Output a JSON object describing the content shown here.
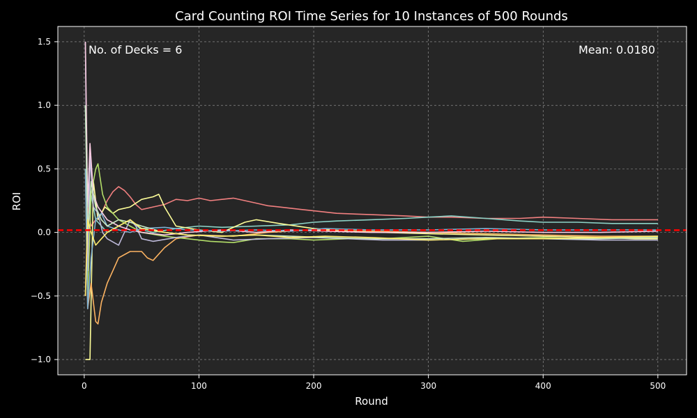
{
  "chart_data": {
    "type": "line",
    "title": "Card Counting ROI Time Series for 10 Instances of 500 Rounds",
    "xlabel": "Round",
    "ylabel": "ROI",
    "xlim": [
      -23,
      525
    ],
    "ylim": [
      -1.12,
      1.62
    ],
    "xticks": [
      0,
      100,
      200,
      300,
      400,
      500
    ],
    "xtick_labels": [
      "0",
      "100",
      "200",
      "300",
      "400",
      "500"
    ],
    "yticks": [
      -1.0,
      -0.5,
      0.0,
      0.5,
      1.0,
      1.5
    ],
    "ytick_labels": [
      "−1.0",
      "−0.5",
      "0.0",
      "0.5",
      "1.0",
      "1.5"
    ],
    "grid": true,
    "background": "#262626",
    "figure_background": "#000000",
    "annotations": {
      "left": "No. of Decks = 6",
      "right": "Mean: 0.0180"
    },
    "mean_line": {
      "value": 0.018,
      "color": "#ff0000",
      "style": "dashed"
    },
    "series": [
      {
        "color": "#f28080",
        "x": [
          1,
          3,
          6,
          10,
          15,
          20,
          25,
          30,
          35,
          40,
          45,
          50,
          60,
          70,
          80,
          90,
          100,
          110,
          120,
          130,
          140,
          150,
          160,
          170,
          180,
          190,
          200,
          220,
          250,
          280,
          300,
          320,
          350,
          380,
          400,
          430,
          460,
          480,
          500
        ],
        "values": [
          -0.5,
          0.2,
          0.05,
          0.1,
          0.15,
          0.25,
          0.32,
          0.36,
          0.33,
          0.28,
          0.22,
          0.18,
          0.2,
          0.22,
          0.26,
          0.25,
          0.27,
          0.25,
          0.26,
          0.27,
          0.25,
          0.23,
          0.21,
          0.2,
          0.19,
          0.18,
          0.17,
          0.15,
          0.14,
          0.13,
          0.12,
          0.12,
          0.11,
          0.11,
          0.12,
          0.11,
          0.1,
          0.1,
          0.1
        ]
      },
      {
        "color": "#8dd3c7",
        "x": [
          1,
          3,
          6,
          10,
          15,
          20,
          30,
          40,
          50,
          60,
          80,
          100,
          120,
          150,
          180,
          200,
          220,
          250,
          280,
          300,
          320,
          350,
          380,
          400,
          430,
          460,
          480,
          500
        ],
        "values": [
          1.0,
          0.0,
          0.3,
          0.1,
          0.05,
          0.0,
          0.05,
          0.1,
          0.02,
          0.0,
          0.03,
          0.05,
          0.04,
          0.05,
          0.06,
          0.08,
          0.09,
          0.1,
          0.11,
          0.12,
          0.13,
          0.11,
          0.09,
          0.08,
          0.08,
          0.07,
          0.07,
          0.07
        ]
      },
      {
        "color": "#ffff99",
        "x": [
          1,
          3,
          5,
          8,
          12,
          18,
          25,
          30,
          40,
          50,
          60,
          65,
          70,
          80,
          100,
          120,
          140,
          150,
          170,
          200,
          230,
          260,
          300,
          350,
          400,
          450,
          480,
          500
        ],
        "values": [
          -1.0,
          -1.0,
          -1.0,
          0.4,
          0.1,
          0.2,
          0.15,
          0.18,
          0.2,
          0.26,
          0.28,
          0.3,
          0.2,
          0.05,
          0.02,
          0.0,
          0.08,
          0.1,
          0.07,
          0.03,
          0.01,
          0.0,
          -0.01,
          -0.02,
          -0.03,
          -0.04,
          -0.05,
          -0.05
        ]
      },
      {
        "color": "#fdb462",
        "x": [
          1,
          3,
          6,
          10,
          12,
          15,
          20,
          25,
          30,
          40,
          50,
          55,
          60,
          70,
          80,
          100,
          130,
          160,
          200,
          250,
          300,
          350,
          400,
          450,
          500
        ],
        "values": [
          0.5,
          -0.6,
          -0.4,
          -0.7,
          -0.72,
          -0.55,
          -0.4,
          -0.3,
          -0.2,
          -0.15,
          -0.15,
          -0.2,
          -0.22,
          -0.12,
          -0.05,
          -0.02,
          -0.03,
          0.0,
          0.02,
          0.01,
          0.0,
          -0.01,
          -0.02,
          -0.03,
          -0.03
        ]
      },
      {
        "color": "#b3de69",
        "x": [
          1,
          3,
          6,
          10,
          12,
          16,
          20,
          30,
          40,
          50,
          70,
          90,
          110,
          130,
          150,
          180,
          200,
          230,
          260,
          300,
          330,
          360,
          400,
          430,
          460,
          500
        ],
        "values": [
          0.5,
          -0.5,
          0.3,
          0.5,
          0.54,
          0.3,
          0.2,
          0.1,
          0.05,
          0.0,
          -0.03,
          -0.05,
          -0.07,
          -0.08,
          -0.05,
          -0.05,
          -0.06,
          -0.05,
          -0.05,
          -0.03,
          -0.07,
          -0.05,
          -0.04,
          -0.05,
          -0.04,
          -0.04
        ]
      },
      {
        "color": "#bebada",
        "x": [
          1,
          3,
          5,
          8,
          12,
          16,
          20,
          30,
          40,
          45,
          50,
          60,
          80,
          100,
          130,
          160,
          200,
          230,
          260,
          300,
          350,
          400,
          450,
          500
        ],
        "values": [
          1.5,
          -0.3,
          0.6,
          0.2,
          0.15,
          0.0,
          -0.05,
          -0.1,
          0.1,
          0.05,
          -0.05,
          -0.07,
          -0.04,
          -0.02,
          -0.06,
          -0.05,
          -0.04,
          -0.05,
          -0.06,
          -0.06,
          -0.05,
          -0.05,
          -0.06,
          -0.06
        ]
      },
      {
        "color": "#fccde5",
        "x": [
          1,
          3,
          5,
          8,
          12,
          20,
          30,
          40,
          50,
          70,
          90,
          120,
          150,
          180,
          210,
          250,
          300,
          350,
          400,
          450,
          500
        ],
        "values": [
          1.5,
          0.2,
          0.7,
          0.3,
          0.2,
          0.1,
          0.05,
          0.02,
          0.0,
          -0.02,
          0.0,
          0.02,
          0.0,
          0.02,
          0.01,
          0.0,
          0.0,
          0.01,
          0.0,
          0.0,
          0.01
        ]
      },
      {
        "color": "#80b1d3",
        "x": [
          1,
          3,
          6,
          10,
          15,
          20,
          30,
          40,
          50,
          70,
          90,
          120,
          150,
          180,
          210,
          250,
          300,
          350,
          400,
          450,
          500
        ],
        "values": [
          0.5,
          -0.6,
          -0.2,
          0.1,
          0.15,
          0.05,
          0.02,
          0.0,
          0.03,
          0.04,
          0.02,
          0.01,
          0.02,
          0.01,
          0.03,
          0.02,
          0.02,
          0.03,
          0.02,
          0.02,
          0.02
        ]
      },
      {
        "color": "#ccebc5",
        "x": [
          1,
          3,
          6,
          10,
          15,
          20,
          30,
          40,
          50,
          70,
          90,
          120,
          150,
          180,
          210,
          250,
          300,
          350,
          400,
          450,
          500
        ],
        "values": [
          1.0,
          0.0,
          0.4,
          0.2,
          0.1,
          0.05,
          0.1,
          0.08,
          0.05,
          0.0,
          -0.02,
          -0.03,
          -0.02,
          -0.03,
          -0.04,
          -0.05,
          -0.05,
          -0.04,
          -0.05,
          -0.05,
          -0.04
        ]
      },
      {
        "color": "#ffed6f",
        "x": [
          1,
          3,
          6,
          10,
          15,
          20,
          30,
          40,
          50,
          70,
          90,
          120,
          150,
          180,
          210,
          250,
          300,
          350,
          400,
          450,
          500
        ],
        "values": [
          -0.5,
          0.1,
          0.0,
          -0.1,
          -0.05,
          0.0,
          0.05,
          0.1,
          0.03,
          0.0,
          -0.02,
          -0.03,
          -0.02,
          -0.04,
          -0.03,
          -0.04,
          -0.06,
          -0.05,
          -0.05,
          -0.04,
          -0.03
        ]
      }
    ]
  }
}
